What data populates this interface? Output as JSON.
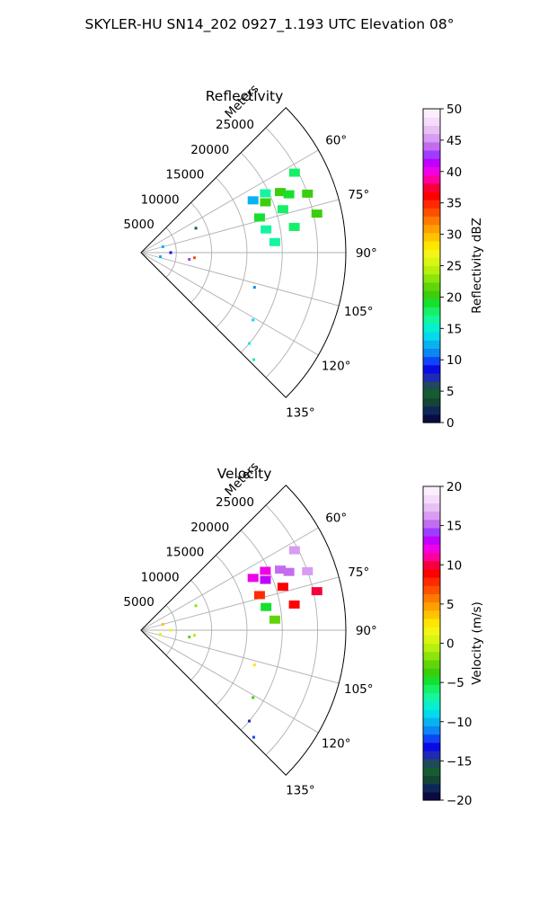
{
  "figure": {
    "suptitle": "SKYLER-HU  SN14_202  0927_1.193 UTC Elevation 08°"
  },
  "colors": {
    "grid": "#b0b0b0",
    "axis": "#000000",
    "background": "#ffffff"
  },
  "chart_data": [
    {
      "type": "heatmap",
      "title": "Reflectivity",
      "radial_axis_label": "Meters",
      "radial_ticks": [
        5000,
        10000,
        15000,
        20000,
        25000
      ],
      "radial_tick_labels": [
        "5000",
        "10000",
        "15000",
        "20000",
        "25000"
      ],
      "rlim": [
        0,
        29000
      ],
      "theta_ticks_deg": [
        60,
        75,
        90,
        105,
        120,
        135
      ],
      "theta_tick_labels": [
        "60°",
        "75°",
        "90°",
        "105°",
        "120°",
        "135°"
      ],
      "thetalim_deg": [
        45,
        135
      ],
      "grid": true,
      "colorbar": {
        "label": "Reflectivity dBZ",
        "range": [
          0,
          50
        ],
        "ticks": [
          0,
          5,
          10,
          15,
          20,
          25,
          30,
          35,
          40,
          45,
          50
        ],
        "tick_labels": [
          "0",
          "5",
          "10",
          "15",
          "20",
          "25",
          "30",
          "35",
          "40",
          "45",
          "50"
        ],
        "colors": [
          "#0b0b42",
          "#0d2858",
          "#144535",
          "#175c30",
          "#1e4b5c",
          "#1f2bb3",
          "#0a0ae6",
          "#0f45f7",
          "#0a86f5",
          "#09b2ef",
          "#05d9ec",
          "#07efd0",
          "#14f5a0",
          "#15f068",
          "#16e02e",
          "#3bce0c",
          "#62d40a",
          "#8ae50a",
          "#b8ef0d",
          "#d9f512",
          "#f3f516",
          "#ffe600",
          "#ffc400",
          "#ffa000",
          "#ff7a00",
          "#ff5000",
          "#ff2a00",
          "#ff0000",
          "#f5003a",
          "#ff00a0",
          "#f000e6",
          "#c000ff",
          "#a03cff",
          "#c46cf0",
          "#d89cf2",
          "#e8c0f5",
          "#f4dcfa",
          "#fbeefd"
        ]
      },
      "cells": [
        {
          "az": 62.5,
          "r": 24500,
          "v": 18
        },
        {
          "az": 66.5,
          "r": 21500,
          "v": 21
        },
        {
          "az": 68.0,
          "r": 19000,
          "v": 20
        },
        {
          "az": 64.5,
          "r": 19500,
          "v": 17
        },
        {
          "az": 65.0,
          "r": 17500,
          "v": 13
        },
        {
          "az": 68.5,
          "r": 22500,
          "v": 19
        },
        {
          "az": 70.5,
          "r": 25000,
          "v": 20
        },
        {
          "az": 73.0,
          "r": 21000,
          "v": 18
        },
        {
          "az": 73.5,
          "r": 17500,
          "v": 19
        },
        {
          "az": 77.5,
          "r": 25500,
          "v": 21
        },
        {
          "az": 80.5,
          "r": 22000,
          "v": 18
        },
        {
          "az": 79.5,
          "r": 18000,
          "v": 17
        },
        {
          "az": 85.5,
          "r": 19000,
          "v": 16
        },
        {
          "az": 66.0,
          "r": 8500,
          "v": 5
        },
        {
          "az": 75.0,
          "r": 3200,
          "v": 12
        },
        {
          "az": 90.0,
          "r": 4200,
          "v": 9
        },
        {
          "az": 95.5,
          "r": 7600,
          "v": 33
        },
        {
          "az": 98.0,
          "r": 6900,
          "v": 43
        },
        {
          "az": 102.0,
          "r": 2800,
          "v": 13
        },
        {
          "az": 107.0,
          "r": 16800,
          "v": 11
        },
        {
          "az": 121.0,
          "r": 18500,
          "v": 14
        },
        {
          "az": 130.0,
          "r": 20000,
          "v": 15
        },
        {
          "az": 133.5,
          "r": 22000,
          "v": 17
        }
      ]
    },
    {
      "type": "heatmap",
      "title": "Velocity",
      "radial_axis_label": "Meters",
      "radial_ticks": [
        5000,
        10000,
        15000,
        20000,
        25000
      ],
      "radial_tick_labels": [
        "5000",
        "10000",
        "15000",
        "20000",
        "25000"
      ],
      "rlim": [
        0,
        29000
      ],
      "theta_ticks_deg": [
        60,
        75,
        90,
        105,
        120,
        135
      ],
      "theta_tick_labels": [
        "60°",
        "75°",
        "90°",
        "105°",
        "120°",
        "135°"
      ],
      "thetalim_deg": [
        45,
        135
      ],
      "grid": true,
      "colorbar": {
        "label": "Velocity (m/s)",
        "range": [
          -20,
          20
        ],
        "ticks": [
          -20,
          -15,
          -10,
          -5,
          0,
          5,
          10,
          15,
          20
        ],
        "tick_labels": [
          "−20",
          "−15",
          "−10",
          "−5",
          "0",
          "5",
          "10",
          "15",
          "20"
        ],
        "colors": [
          "#0b0b42",
          "#0d2858",
          "#144535",
          "#175c30",
          "#1e4b5c",
          "#1f2bb3",
          "#0a0ae6",
          "#0f45f7",
          "#0a86f5",
          "#09b2ef",
          "#05d9ec",
          "#07efd0",
          "#14f5a0",
          "#15f068",
          "#16e02e",
          "#3bce0c",
          "#62d40a",
          "#8ae50a",
          "#b8ef0d",
          "#d9f512",
          "#f3f516",
          "#ffe600",
          "#ffc400",
          "#ffa000",
          "#ff7a00",
          "#ff5000",
          "#ff2a00",
          "#ff0000",
          "#f5003a",
          "#ff00a0",
          "#f000e6",
          "#c000ff",
          "#a03cff",
          "#c46cf0",
          "#d89cf2",
          "#e8c0f5",
          "#f4dcfa",
          "#fbeefd"
        ]
      },
      "cells": [
        {
          "az": 62.5,
          "r": 24500,
          "v": 16
        },
        {
          "az": 66.5,
          "r": 21500,
          "v": 15
        },
        {
          "az": 68.0,
          "r": 19000,
          "v": 13
        },
        {
          "az": 64.5,
          "r": 19500,
          "v": 12
        },
        {
          "az": 65.0,
          "r": 17500,
          "v": 12
        },
        {
          "az": 68.5,
          "r": 22500,
          "v": 15
        },
        {
          "az": 70.5,
          "r": 25000,
          "v": 16
        },
        {
          "az": 73.0,
          "r": 21000,
          "v": 9
        },
        {
          "az": 73.5,
          "r": 17500,
          "v": 8
        },
        {
          "az": 77.5,
          "r": 25500,
          "v": 10
        },
        {
          "az": 80.5,
          "r": 22000,
          "v": 9
        },
        {
          "az": 79.5,
          "r": 18000,
          "v": -5
        },
        {
          "az": 85.5,
          "r": 19000,
          "v": -3
        },
        {
          "az": 66.0,
          "r": 8500,
          "v": -2
        },
        {
          "az": 75.0,
          "r": 3200,
          "v": 4
        },
        {
          "az": 90.0,
          "r": 4200,
          "v": 2
        },
        {
          "az": 95.5,
          "r": 7600,
          "v": -1
        },
        {
          "az": 98.0,
          "r": 6900,
          "v": -3
        },
        {
          "az": 102.0,
          "r": 2800,
          "v": 1
        },
        {
          "az": 107.0,
          "r": 16800,
          "v": 3
        },
        {
          "az": 121.0,
          "r": 18500,
          "v": -4
        },
        {
          "az": 130.0,
          "r": 20000,
          "v": -14
        },
        {
          "az": 133.5,
          "r": 22000,
          "v": -12
        }
      ]
    }
  ]
}
